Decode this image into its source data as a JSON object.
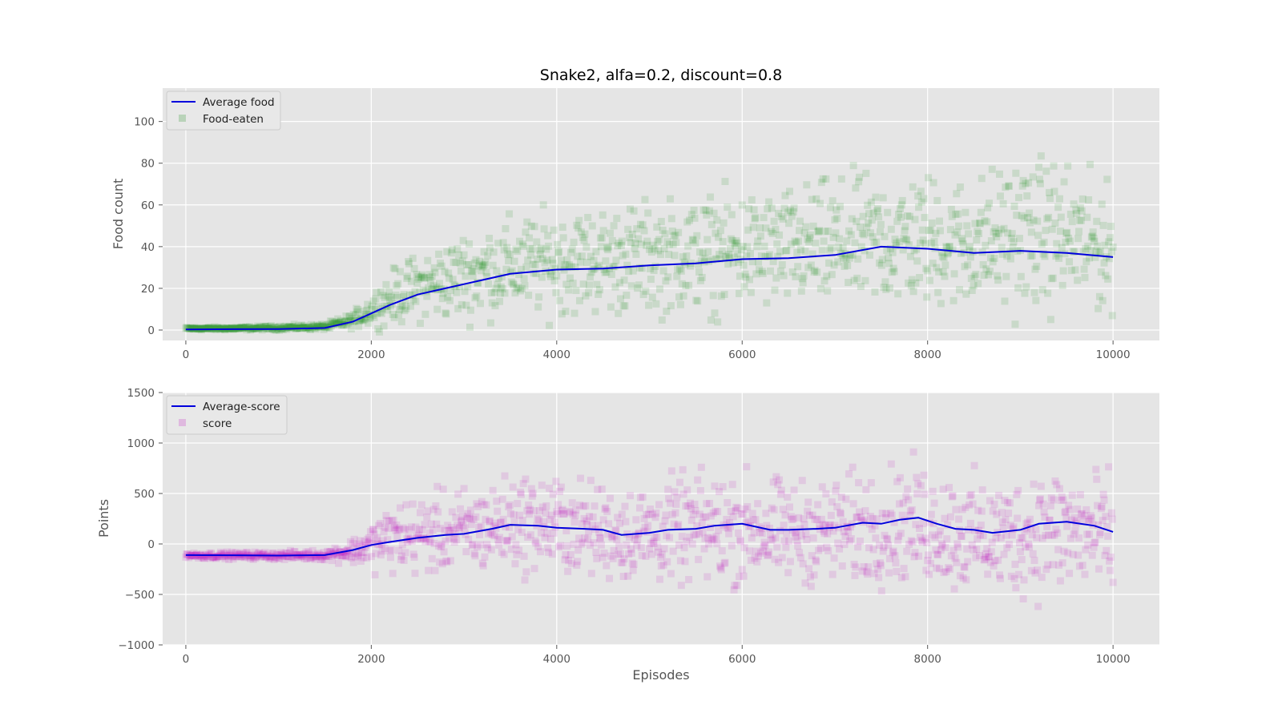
{
  "colors": {
    "panel_background": "#e5e5e5",
    "grid": "#ffffff",
    "average_line": "#0000dd",
    "food_marker": "#008000",
    "score_marker": "#c000c0"
  },
  "chart_data": [
    {
      "type": "scatter",
      "title": "Snake2, alfa=0.2, discount=0.8",
      "xlabel": "",
      "ylabel": "Food count",
      "xlim": [
        -250,
        10500
      ],
      "ylim": [
        -5,
        116
      ],
      "xticks": [
        0,
        2000,
        4000,
        6000,
        8000,
        10000
      ],
      "yticks": [
        0,
        20,
        40,
        60,
        80,
        100
      ],
      "grid": true,
      "legend_position": "top-left",
      "series": [
        {
          "name": "Average food",
          "kind": "line",
          "color": "#0000dd",
          "x": [
            0,
            500,
            1000,
            1500,
            1800,
            2000,
            2200,
            2500,
            2800,
            3000,
            3200,
            3500,
            4000,
            4500,
            5000,
            5500,
            6000,
            6500,
            7000,
            7500,
            8000,
            8500,
            9000,
            9500,
            10000
          ],
          "y": [
            0.3,
            0.4,
            0.5,
            1.0,
            4.0,
            8.0,
            12.0,
            17.0,
            20.0,
            22.0,
            24.0,
            27.0,
            29.0,
            29.5,
            31.0,
            32.0,
            34.0,
            34.5,
            36.0,
            40.0,
            39.0,
            37.0,
            38.0,
            37.0,
            35.0
          ]
        },
        {
          "name": "Food-eaten",
          "kind": "scatter",
          "color": "#008000",
          "marker": "square",
          "alpha": 0.12,
          "spread_low": [
            0,
            0,
            0,
            0,
            0,
            0,
            0,
            0,
            0,
            0,
            0,
            0,
            0,
            0,
            0,
            0,
            0,
            0,
            0,
            0,
            0,
            0,
            0,
            0,
            0
          ],
          "spread_high": [
            2,
            2,
            3,
            4,
            10,
            22,
            35,
            45,
            52,
            58,
            62,
            65,
            70,
            72,
            75,
            78,
            80,
            82,
            88,
            90,
            90,
            88,
            105,
            100,
            80
          ]
        }
      ]
    },
    {
      "type": "scatter",
      "title": "",
      "xlabel": "Episodes",
      "ylabel": "Points",
      "xlim": [
        -250,
        10500
      ],
      "ylim": [
        -1000,
        1500
      ],
      "xticks": [
        0,
        2000,
        4000,
        6000,
        8000,
        10000
      ],
      "yticks": [
        -1000,
        -500,
        0,
        500,
        1000,
        1500
      ],
      "grid": true,
      "legend_position": "top-left",
      "series": [
        {
          "name": "Average-score",
          "kind": "line",
          "color": "#0000dd",
          "x": [
            0,
            500,
            1000,
            1500,
            1800,
            2000,
            2200,
            2500,
            2800,
            3000,
            3300,
            3500,
            3800,
            4000,
            4300,
            4500,
            4700,
            5000,
            5200,
            5500,
            5700,
            6000,
            6300,
            6500,
            6800,
            7000,
            7300,
            7500,
            7700,
            7900,
            8100,
            8300,
            8500,
            8700,
            9000,
            9200,
            9500,
            9800,
            10000
          ],
          "y": [
            -110,
            -112,
            -115,
            -110,
            -60,
            -10,
            20,
            60,
            90,
            100,
            150,
            190,
            180,
            160,
            150,
            140,
            90,
            110,
            140,
            150,
            180,
            200,
            140,
            140,
            150,
            160,
            210,
            200,
            240,
            260,
            200,
            150,
            140,
            110,
            140,
            200,
            220,
            180,
            120
          ]
        },
        {
          "name": "score",
          "kind": "scatter",
          "color": "#c000c0",
          "marker": "square",
          "alpha": 0.12,
          "spread_low": [
            -160,
            -165,
            -170,
            -180,
            -250,
            -350,
            -400,
            -420,
            -450,
            -450,
            -450,
            -420,
            -450,
            -480,
            -500,
            -550,
            -550,
            -600,
            -600,
            -620,
            -650,
            -680,
            -650,
            -600,
            -620,
            -650,
            -700,
            -650,
            -650,
            -700,
            -700,
            -750,
            -800,
            -800,
            -820,
            -850,
            -850,
            -880,
            -900
          ],
          "spread_high": [
            -70,
            -70,
            -60,
            -40,
            100,
            300,
            600,
            650,
            700,
            750,
            800,
            900,
            950,
            900,
            800,
            800,
            750,
            800,
            850,
            900,
            900,
            900,
            850,
            800,
            800,
            850,
            900,
            950,
            950,
            1000,
            950,
            900,
            850,
            800,
            850,
            1000,
            950,
            900,
            850
          ]
        }
      ]
    }
  ]
}
